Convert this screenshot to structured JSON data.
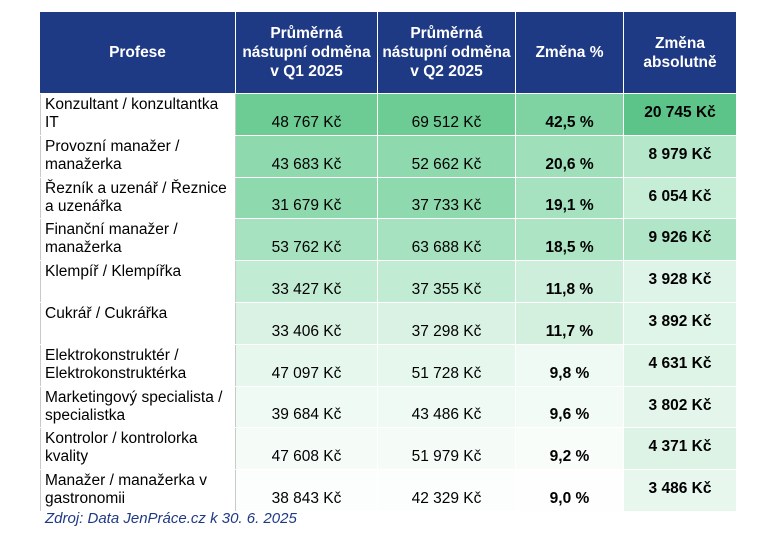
{
  "headers": {
    "profese": "Profese",
    "q1": "Průměrná nástupní odměna v Q1 2025",
    "q2": "Průměrná nástupní odměna v Q2 2025",
    "zmena_pct": "Změna %",
    "zmena_abs": "Změna absolutně"
  },
  "rows": [
    {
      "name": "Konzultant / konzultantka IT",
      "q1": "48 767 Kč",
      "q2": "69 512 Kč",
      "pct": "42,5 %",
      "abs": "20 745 Kč",
      "c_q": "#6ccc93",
      "c_pct": "#7fd3a3",
      "c_abs": "#5cc489"
    },
    {
      "name": "Provozní manažer / manažerka",
      "q1": "43 683 Kč",
      "q2": "52 662 Kč",
      "pct": "20,6 %",
      "abs": "8 979 Kč",
      "c_q": "#8fd9ae",
      "c_pct": "#9fdfba",
      "c_abs": "#b5e7ca"
    },
    {
      "name": "Řezník a uzenář / Řeznice a uzenářka",
      "q1": "31 679 Kč",
      "q2": "37 733 Kč",
      "pct": "19,1 %",
      "abs": "6 054 Kč",
      "c_q": "#8fd9ae",
      "c_pct": "#a6e2c0",
      "c_abs": "#c6edd6"
    },
    {
      "name": "Finanční manažer / manažerka",
      "q1": "53 762 Kč",
      "q2": "63 688 Kč",
      "pct": "18,5 %",
      "abs": "9 926 Kč",
      "c_q": "#a6e2c0",
      "c_pct": "#ade4c4",
      "c_abs": "#b0e5c7"
    },
    {
      "name": "Klempíř / Klempířka",
      "q1": "33 427 Kč",
      "q2": "37 355 Kč",
      "pct": "11,8 %",
      "abs": "3 928 Kč",
      "c_q": "#c2ebd3",
      "c_pct": "#cdeedb",
      "c_abs": "#dff4e8"
    },
    {
      "name": "Cukrář / Cukrářka",
      "q1": "33 406 Kč",
      "q2": "37 298 Kč",
      "pct": "11,7 %",
      "abs": "3 892 Kč",
      "c_q": "#d9f2e4",
      "c_pct": "#d3f0df",
      "c_abs": "#e0f5e9"
    },
    {
      "name": "Elektrokonstruktér / Elektrokonstruktérka",
      "q1": "47 097 Kč",
      "q2": "51 728 Kč",
      "pct": "9,8 %",
      "abs": "4 631 Kč",
      "c_q": "#e6f7ed",
      "c_pct": "#f0faf4",
      "c_abs": "#ddf4e6"
    },
    {
      "name": "Marketingový specialista / specialistka",
      "q1": "39 684 Kč",
      "q2": "43 486 Kč",
      "pct": "9,6 %",
      "abs": "3 802 Kč",
      "c_q": "#f0faf4",
      "c_pct": "#f3fbf6",
      "c_abs": "#e4f6ec"
    },
    {
      "name": "Kontrolor / kontrolorka kvality",
      "q1": "47 608 Kč",
      "q2": "51 979 Kč",
      "pct": "9,2 %",
      "abs": "4 371 Kč",
      "c_q": "#f5fcf8",
      "c_pct": "#f8fdfa",
      "c_abs": "#dcf3e6"
    },
    {
      "name": "Manažer / manažerka v gastronomii",
      "q1": "38 843 Kč",
      "q2": "42 329 Kč",
      "pct": "9,0 %",
      "abs": "3 486 Kč",
      "c_q": "#fbfefc",
      "c_pct": "#fdfefd",
      "c_abs": "#e8f7ee"
    }
  ],
  "source": "Zdroj: Data JenPráce.cz k 30. 6. 2025"
}
